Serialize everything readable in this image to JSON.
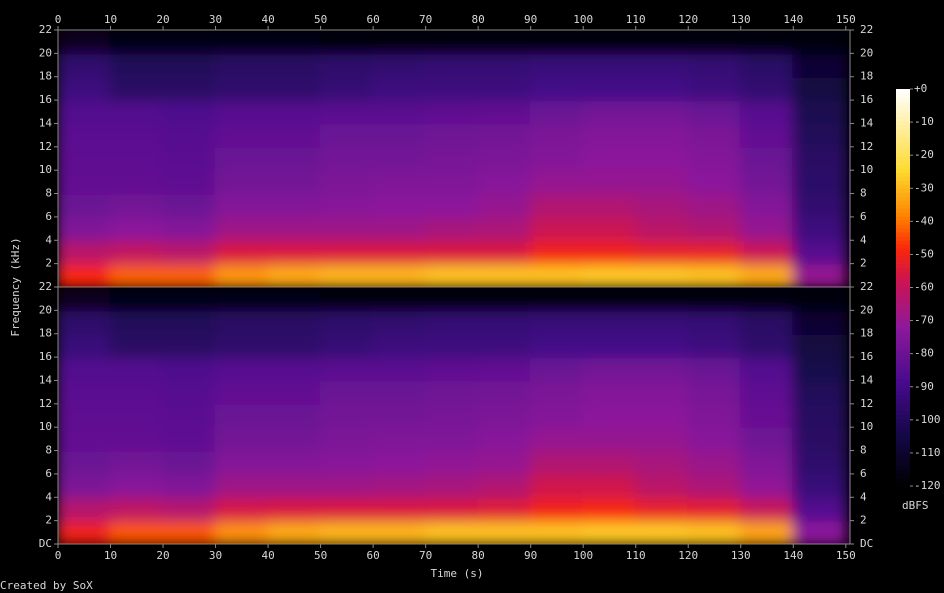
{
  "chart_data": {
    "type": "heatmap",
    "xlabel": "Time (s)",
    "ylabel": "Frequency (kHz)",
    "xlim": [
      0,
      150.8
    ],
    "xticks": [
      0,
      10,
      20,
      30,
      40,
      50,
      60,
      70,
      80,
      90,
      100,
      110,
      120,
      130,
      140,
      150
    ],
    "ylim": [
      0,
      22
    ],
    "yticks": [
      {
        "value": 0,
        "label": "DC"
      },
      2,
      4,
      6,
      8,
      10,
      12,
      14,
      16,
      18,
      20,
      22
    ],
    "x_bins": [
      0,
      10,
      20,
      30,
      40,
      50,
      60,
      70,
      80,
      90,
      100,
      110,
      120,
      130,
      140,
      150
    ],
    "y_bins": [
      0,
      2,
      4,
      6,
      8,
      10,
      12,
      14,
      16,
      18,
      20,
      22
    ],
    "series": [
      {
        "values": [
          [
            -48,
            -42,
            -42,
            -35,
            -32,
            -30,
            -30,
            -28,
            -28,
            -28,
            -27,
            -27,
            -28,
            -32,
            -70
          ],
          [
            -62,
            -60,
            -62,
            -55,
            -55,
            -55,
            -55,
            -55,
            -55,
            -50,
            -50,
            -52,
            -52,
            -58,
            -85
          ],
          [
            -75,
            -72,
            -74,
            -68,
            -68,
            -68,
            -68,
            -66,
            -65,
            -58,
            -58,
            -62,
            -64,
            -70,
            -92
          ],
          [
            -80,
            -78,
            -80,
            -74,
            -74,
            -73,
            -72,
            -72,
            -70,
            -64,
            -64,
            -66,
            -68,
            -74,
            -95
          ],
          [
            -82,
            -82,
            -83,
            -78,
            -78,
            -76,
            -75,
            -75,
            -73,
            -70,
            -70,
            -70,
            -72,
            -78,
            -97
          ],
          [
            -83,
            -83,
            -84,
            -80,
            -80,
            -78,
            -78,
            -77,
            -76,
            -74,
            -72,
            -72,
            -74,
            -80,
            -98
          ],
          [
            -84,
            -84,
            -85,
            -82,
            -82,
            -80,
            -80,
            -79,
            -78,
            -76,
            -74,
            -74,
            -76,
            -82,
            -100
          ],
          [
            -86,
            -86,
            -87,
            -85,
            -85,
            -84,
            -84,
            -83,
            -82,
            -80,
            -78,
            -78,
            -80,
            -85,
            -102
          ],
          [
            -92,
            -98,
            -98,
            -96,
            -96,
            -94,
            -92,
            -92,
            -92,
            -90,
            -90,
            -90,
            -92,
            -95,
            -105
          ],
          [
            -95,
            -100,
            -100,
            -98,
            -98,
            -96,
            -95,
            -94,
            -94,
            -93,
            -93,
            -93,
            -94,
            -97,
            -108
          ],
          [
            -112,
            -115,
            -115,
            -115,
            -116,
            -118,
            -118,
            -118,
            -118,
            -118,
            -118,
            -118,
            -118,
            -118,
            -118
          ]
        ]
      },
      {
        "values": [
          [
            -50,
            -43,
            -43,
            -36,
            -32,
            -30,
            -30,
            -28,
            -28,
            -28,
            -27,
            -27,
            -28,
            -33,
            -72
          ],
          [
            -63,
            -61,
            -63,
            -56,
            -55,
            -55,
            -55,
            -55,
            -54,
            -50,
            -49,
            -52,
            -53,
            -59,
            -86
          ],
          [
            -76,
            -73,
            -75,
            -68,
            -68,
            -68,
            -67,
            -66,
            -64,
            -57,
            -57,
            -62,
            -65,
            -71,
            -93
          ],
          [
            -80,
            -78,
            -80,
            -74,
            -74,
            -73,
            -72,
            -71,
            -70,
            -64,
            -64,
            -66,
            -69,
            -75,
            -96
          ],
          [
            -82,
            -82,
            -83,
            -78,
            -78,
            -76,
            -75,
            -75,
            -73,
            -70,
            -70,
            -70,
            -73,
            -79,
            -98
          ],
          [
            -83,
            -83,
            -84,
            -80,
            -80,
            -78,
            -78,
            -77,
            -76,
            -74,
            -72,
            -72,
            -75,
            -81,
            -99
          ],
          [
            -84,
            -84,
            -85,
            -82,
            -82,
            -80,
            -80,
            -79,
            -78,
            -76,
            -74,
            -74,
            -77,
            -83,
            -100
          ],
          [
            -86,
            -86,
            -87,
            -85,
            -85,
            -84,
            -84,
            -83,
            -82,
            -80,
            -78,
            -78,
            -80,
            -86,
            -103
          ],
          [
            -93,
            -98,
            -98,
            -96,
            -96,
            -94,
            -92,
            -92,
            -92,
            -90,
            -90,
            -90,
            -92,
            -96,
            -106
          ],
          [
            -96,
            -100,
            -100,
            -98,
            -98,
            -96,
            -95,
            -94,
            -94,
            -93,
            -93,
            -93,
            -94,
            -98,
            -109
          ],
          [
            -113,
            -115,
            -115,
            -115,
            -116,
            -118,
            -118,
            -118,
            -118,
            -118,
            -118,
            -118,
            -118,
            -118,
            -118
          ]
        ]
      }
    ],
    "colorbar": {
      "label": "dBFS",
      "lim": [
        -120,
        0
      ],
      "ticks": [
        {
          "value": 0,
          "label": "+0"
        },
        -10,
        -20,
        -30,
        -40,
        -50,
        -60,
        -70,
        -80,
        -90,
        -100,
        -110,
        -120
      ]
    },
    "footer": "Created by SoX"
  }
}
